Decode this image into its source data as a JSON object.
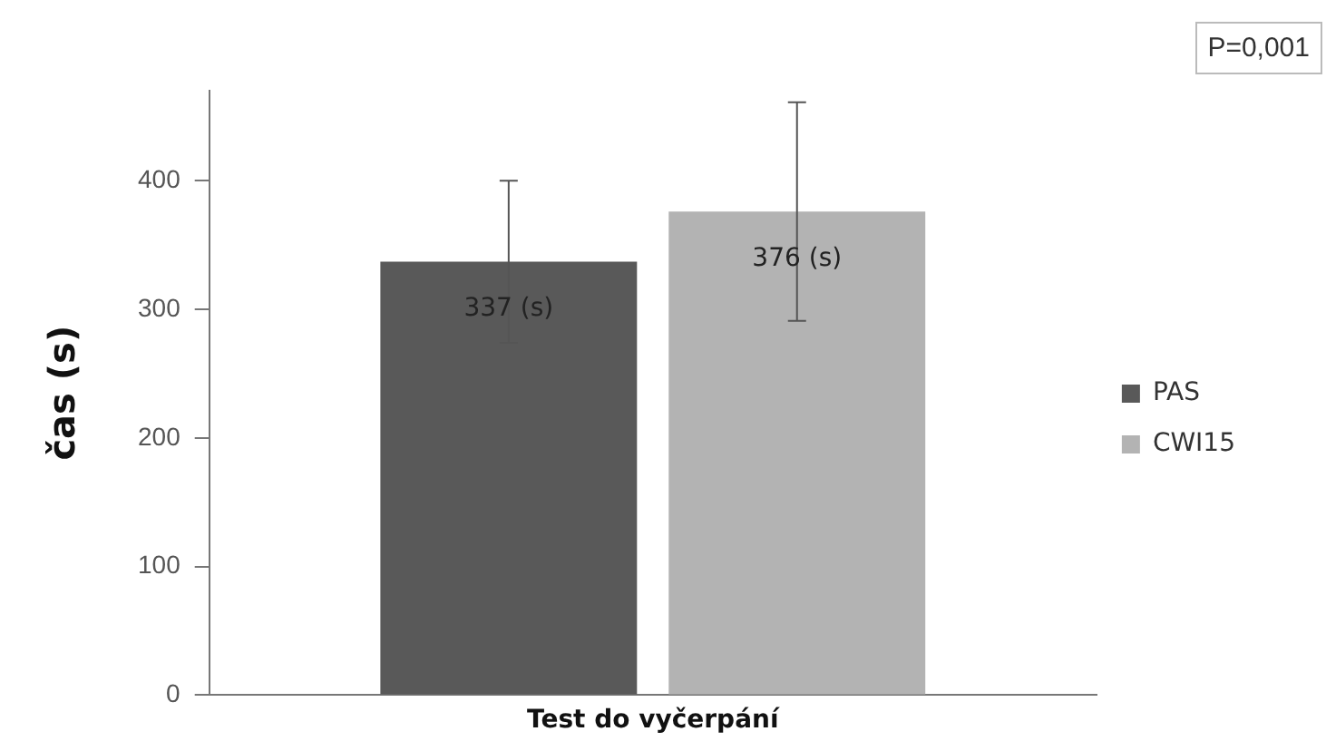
{
  "chart_data": {
    "type": "bar",
    "categories": [
      "Test do vyčerpání"
    ],
    "ylabel": "čas (s)",
    "ylim": [
      0,
      470
    ],
    "yticks": [
      0,
      100,
      200,
      300,
      400
    ],
    "grid": false,
    "legend": "right",
    "annotations": [
      "P=0,001"
    ],
    "series": [
      {
        "name": "PAS",
        "color": "#595959",
        "values": [
          337
        ],
        "errors": [
          63
        ],
        "value_labels": [
          "337 (s)"
        ]
      },
      {
        "name": "CWI15",
        "color": "#b3b3b3",
        "values": [
          376
        ],
        "errors": [
          85
        ],
        "value_labels": [
          "376 (s)"
        ]
      }
    ]
  }
}
